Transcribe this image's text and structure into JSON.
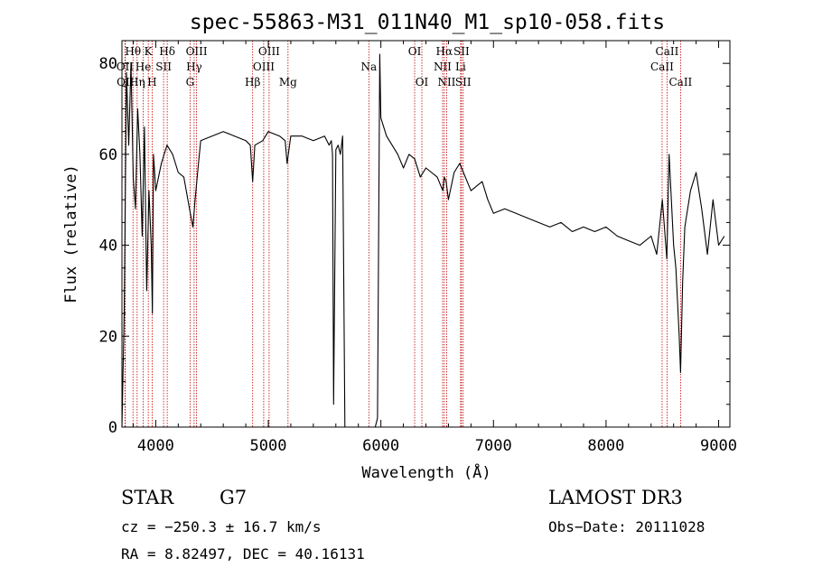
{
  "chart_data": {
    "type": "line",
    "title": "spec-55863-M31_011N40_M1_sp10-058.fits",
    "xlabel": "Wavelength (Å)",
    "ylabel": "Flux (relative)",
    "xlim": [
      3700,
      9100
    ],
    "ylim": [
      0,
      85
    ],
    "xticks": [
      4000,
      5000,
      6000,
      7000,
      8000,
      9000
    ],
    "yticks": [
      0,
      20,
      40,
      60,
      80
    ],
    "series": [
      {
        "name": "spectrum",
        "x": [
          3700,
          3720,
          3740,
          3760,
          3780,
          3800,
          3820,
          3840,
          3860,
          3880,
          3900,
          3920,
          3940,
          3960,
          3970,
          3980,
          4000,
          4050,
          4100,
          4150,
          4200,
          4250,
          4300,
          4330,
          4350,
          4380,
          4400,
          4500,
          4600,
          4700,
          4800,
          4840,
          4861,
          4880,
          4950,
          5000,
          5100,
          5150,
          5167,
          5200,
          5300,
          5400,
          5500,
          5540,
          5560,
          5570,
          5580,
          5600,
          5620,
          5640,
          5660,
          5680,
          5700,
          5800,
          5890,
          5900,
          5930,
          5950,
          5970,
          5990,
          6000,
          6050,
          6100,
          6150,
          6200,
          6250,
          6300,
          6350,
          6400,
          6450,
          6500,
          6550,
          6563,
          6580,
          6600,
          6650,
          6700,
          6750,
          6800,
          6850,
          6900,
          6950,
          7000,
          7100,
          7200,
          7300,
          7400,
          7500,
          7600,
          7700,
          7800,
          7900,
          8000,
          8100,
          8200,
          8300,
          8400,
          8450,
          8500,
          8540,
          8560,
          8600,
          8620,
          8650,
          8662,
          8680,
          8700,
          8750,
          8800,
          8850,
          8900,
          8950,
          9000,
          9050
        ],
        "y": [
          0,
          25,
          78,
          62,
          80,
          55,
          48,
          70,
          60,
          42,
          66,
          30,
          52,
          40,
          25,
          60,
          52,
          58,
          62,
          60,
          56,
          55,
          48,
          44,
          50,
          58,
          63,
          64,
          65,
          64,
          63,
          62,
          54,
          62,
          63,
          65,
          64,
          63,
          58,
          64,
          64,
          63,
          64,
          62,
          63,
          60,
          5,
          61,
          62,
          60,
          64,
          0,
          0,
          0,
          0,
          0,
          0,
          0,
          2,
          82,
          68,
          64,
          62,
          60,
          57,
          60,
          59,
          55,
          57,
          56,
          55,
          52,
          55,
          54,
          50,
          56,
          58,
          55,
          52,
          53,
          54,
          50,
          47,
          48,
          47,
          46,
          45,
          44,
          45,
          43,
          44,
          43,
          44,
          42,
          41,
          40,
          42,
          38,
          50,
          37,
          60,
          40,
          35,
          20,
          12,
          32,
          44,
          52,
          56,
          48,
          38,
          50,
          40,
          42
        ]
      }
    ],
    "lines": [
      {
        "name": "Hθ",
        "wl": 3798,
        "row": 1
      },
      {
        "name": "K",
        "wl": 3934,
        "row": 1
      },
      {
        "name": "Hδ",
        "wl": 4102,
        "row": 1
      },
      {
        "name": "OIII",
        "wl": 4363,
        "row": 1
      },
      {
        "name": "OIII",
        "wl": 5007,
        "row": 1
      },
      {
        "name": "OI",
        "wl": 6300,
        "row": 1
      },
      {
        "name": "Hα",
        "wl": 6563,
        "row": 1
      },
      {
        "name": "SII",
        "wl": 6716,
        "row": 1
      },
      {
        "name": "CaII",
        "wl": 8542,
        "row": 1
      },
      {
        "name": "OII",
        "wl": 3727,
        "row": 2
      },
      {
        "name": "He",
        "wl": 3889,
        "row": 2
      },
      {
        "name": "SII",
        "wl": 4070,
        "row": 2
      },
      {
        "name": "Hγ",
        "wl": 4341,
        "row": 2
      },
      {
        "name": "OIII",
        "wl": 4959,
        "row": 2
      },
      {
        "name": "Na",
        "wl": 5893,
        "row": 2
      },
      {
        "name": "NII",
        "wl": 6548,
        "row": 2
      },
      {
        "name": "Li",
        "wl": 6708,
        "row": 2
      },
      {
        "name": "CaII",
        "wl": 8498,
        "row": 2
      },
      {
        "name": "OII",
        "wl": 3730,
        "row": 3
      },
      {
        "name": "Hη",
        "wl": 3835,
        "row": 3
      },
      {
        "name": "H",
        "wl": 3968,
        "row": 3
      },
      {
        "name": "G",
        "wl": 4305,
        "row": 3
      },
      {
        "name": "Hβ",
        "wl": 4861,
        "row": 3
      },
      {
        "name": "Mg",
        "wl": 5175,
        "row": 3
      },
      {
        "name": "OI",
        "wl": 6364,
        "row": 3
      },
      {
        "name": "NII",
        "wl": 6584,
        "row": 3
      },
      {
        "name": "SII",
        "wl": 6731,
        "row": 3
      },
      {
        "name": "CaII",
        "wl": 8662,
        "row": 3
      }
    ]
  },
  "info": {
    "object_class": "STAR",
    "subclass": "G7",
    "survey": "LAMOST DR3",
    "cz": "cz = −250.3 ± 16.7 km/s",
    "obs_date": "Obs−Date: 20111028",
    "coords": "RA =   8.82497, DEC =  40.16131"
  },
  "colors": {
    "line_marker": "#c00000",
    "spectrum": "#000000"
  }
}
